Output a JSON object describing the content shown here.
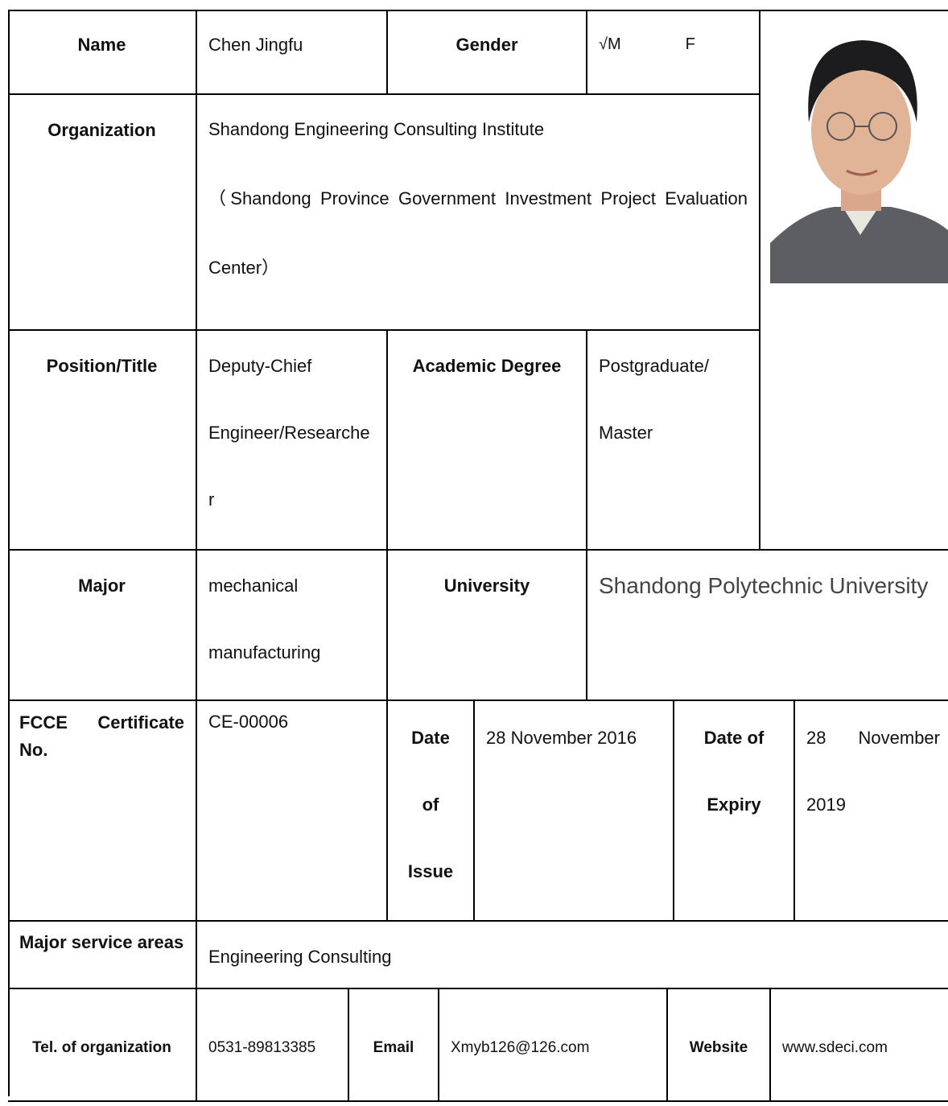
{
  "table": {
    "rows": [
      [
        "Name",
        "Chen Jingfu",
        "Gender",
        "√M",
        "F"
      ],
      [
        "Organization",
        "Shandong Engineering Consulting Institute",
        "（Shandong Province Government Investment Project Evaluation Center）"
      ],
      [
        "Position/Title",
        "Deputy-Chief Engineer/Researcher",
        "Academic Degree",
        "Postgraduate/ Master"
      ],
      [
        "Major",
        "mechanical manufacturing",
        "University",
        "Shandong Polytechnic University"
      ],
      [
        "FCCE Certificate No.",
        "CE-00006",
        "Date of Issue",
        "28 November 2016",
        "Date of Expiry",
        "28 November 2019"
      ],
      [
        "Major service areas",
        "Engineering Consulting"
      ],
      [
        "Tel. of organization",
        "0531-89813385",
        "Email",
        "Xmyb126@126.com",
        "Website",
        "www.sdeci.com"
      ]
    ]
  }
}
